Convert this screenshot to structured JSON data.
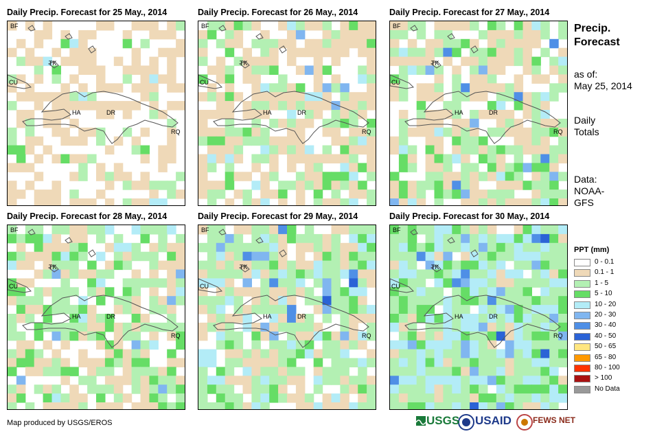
{
  "panels": [
    {
      "title": "Daily Precip. Forecast for 25 May., 2014"
    },
    {
      "title": "Daily Precip. Forecast for 26 May., 2014"
    },
    {
      "title": "Daily Precip. Forecast for 27 May., 2014"
    },
    {
      "title": "Daily Precip. Forecast for 28 May., 2014"
    },
    {
      "title": "Daily Precip. Forecast for 29 May., 2014"
    },
    {
      "title": "Daily Precip. Forecast for 30 May., 2014"
    }
  ],
  "map_labels": {
    "bf": "BF",
    "tk": "TK",
    "cu": "CU",
    "ha": "HA",
    "dr": "DR",
    "rq": "RQ"
  },
  "sidebar": {
    "title_line1": "Precip.",
    "title_line2": "Forecast",
    "asof_line1": "as of:",
    "asof_line2": "May 25, 2014",
    "totals_line1": "Daily",
    "totals_line2": "Totals",
    "data_line1": "Data:",
    "data_line2": "NOAA-",
    "data_line3": "GFS"
  },
  "legend": {
    "title": "PPT (mm)",
    "items": [
      {
        "label": "0 - 0.1",
        "color": "#ffffff"
      },
      {
        "label": "0.1 - 1",
        "color": "#efd9b8"
      },
      {
        "label": "1 - 5",
        "color": "#b3f0b3"
      },
      {
        "label": "5 - 10",
        "color": "#66dd66"
      },
      {
        "label": "10 - 20",
        "color": "#b3ecf7"
      },
      {
        "label": "20 - 30",
        "color": "#80b6f0"
      },
      {
        "label": "30 - 40",
        "color": "#4f8fe6"
      },
      {
        "label": "40 - 50",
        "color": "#2b63d6"
      },
      {
        "label": "50 - 65",
        "color": "#ffe680"
      },
      {
        "label": "65 - 80",
        "color": "#ff9900"
      },
      {
        "label": "80 - 100",
        "color": "#ff3300"
      },
      {
        "label": "> 100",
        "color": "#aa1111"
      },
      {
        "label": "No Data",
        "color": "#999999"
      }
    ]
  },
  "credit": "Map produced by USGS/EROS",
  "logos": {
    "usgs": "USGS",
    "usaid": "USAID",
    "fewsnet": "FEWS NET"
  }
}
